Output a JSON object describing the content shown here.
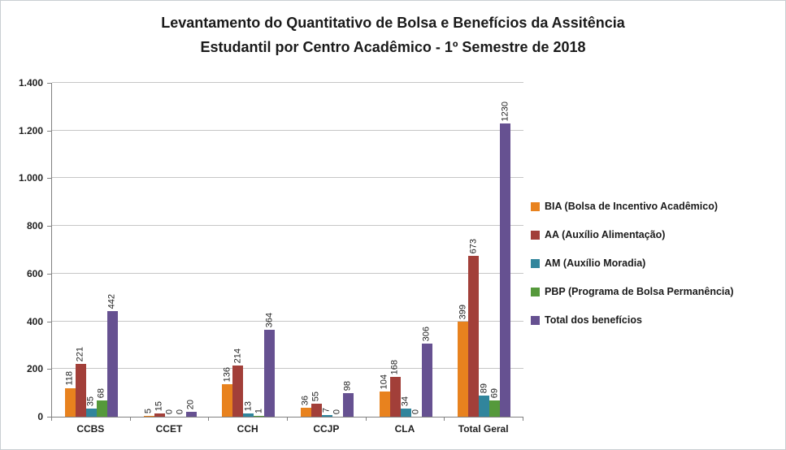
{
  "chart_data": {
    "type": "bar",
    "title_lines": [
      "Levantamento do Quantitativo de Bolsa e Benefícios da Assitência",
      "Estudantil  por Centro Acadêmico - 1º Semestre de 2018"
    ],
    "categories": [
      "CCBS",
      "CCET",
      "CCH",
      "CCJP",
      "CLA",
      "Total Geral"
    ],
    "series": [
      {
        "name": "BIA (Bolsa de Incentivo Acadêmico)",
        "color": "#E8821E",
        "values": [
          118,
          5,
          136,
          36,
          104,
          399
        ]
      },
      {
        "name": "AA (Auxílio Alimentação)",
        "color": "#A23F39",
        "values": [
          221,
          15,
          214,
          55,
          168,
          673
        ]
      },
      {
        "name": "AM (Auxílio Moradia)",
        "color": "#31859C",
        "values": [
          35,
          0,
          13,
          7,
          34,
          89
        ]
      },
      {
        "name": "PBP (Programa de Bolsa Permanência)",
        "color": "#55993B",
        "values": [
          68,
          0,
          1,
          0,
          0,
          69
        ]
      },
      {
        "name": "Total dos benefícios",
        "color": "#665191",
        "values": [
          442,
          20,
          364,
          98,
          306,
          1230
        ]
      }
    ],
    "ylim": [
      0,
      1400
    ],
    "ytick_step": 200,
    "ytick_labels": [
      "0",
      "200",
      "400",
      "600",
      "800",
      "1.000",
      "1.200",
      "1.400"
    ],
    "grid": true,
    "grid_color": "#C6C6C6",
    "axis_color": "#808080",
    "legend_position": "right",
    "data_labels": true,
    "data_label_rotation": 90
  }
}
